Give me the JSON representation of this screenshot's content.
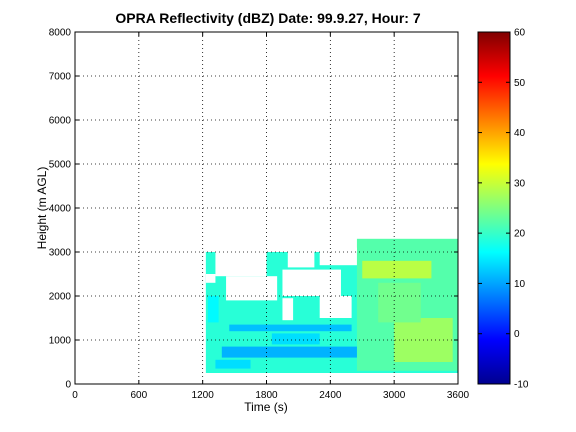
{
  "chart_data": {
    "type": "heatmap",
    "title": "OPRA Reflectivity (dBZ)  Date: 99.9.27, Hour: 7",
    "xlabel": "Time (s)",
    "ylabel": "Height (m AGL)",
    "xlim": [
      0,
      3600
    ],
    "ylim": [
      0,
      8000
    ],
    "x_ticks": [
      "0",
      "600",
      "1200",
      "1800",
      "2400",
      "3000",
      "3600"
    ],
    "y_ticks": [
      "0",
      "1000",
      "2000",
      "3000",
      "4000",
      "5000",
      "6000",
      "7000",
      "8000"
    ],
    "grid": true,
    "colormap": "jet",
    "colorbar": {
      "range": [
        -10,
        60
      ],
      "ticks": [
        "-10",
        "0",
        "10",
        "20",
        "30",
        "40",
        "50",
        "60"
      ]
    },
    "echo_regions": [
      {
        "x": [
          1230,
          3600
        ],
        "y": [
          250,
          3000
        ],
        "dbz": 19
      },
      {
        "x": [
          2650,
          3600
        ],
        "y": [
          300,
          3300
        ],
        "dbz": 22
      },
      {
        "x": [
          2700,
          3350
        ],
        "y": [
          2400,
          2800
        ],
        "dbz": 29
      },
      {
        "x": [
          3000,
          3550
        ],
        "y": [
          500,
          1500
        ],
        "dbz": 27
      },
      {
        "x": [
          2850,
          3250
        ],
        "y": [
          1400,
          2300
        ],
        "dbz": 24
      },
      {
        "x": [
          1380,
          2650
        ],
        "y": [
          600,
          850
        ],
        "dbz": 11
      },
      {
        "x": [
          1450,
          2600
        ],
        "y": [
          1200,
          1350
        ],
        "dbz": 12
      },
      {
        "x": [
          1320,
          1650
        ],
        "y": [
          350,
          550
        ],
        "dbz": 14
      },
      {
        "x": [
          1250,
          1350
        ],
        "y": [
          1400,
          2000
        ],
        "dbz": 16
      },
      {
        "x": [
          1850,
          2300
        ],
        "y": [
          900,
          1150
        ],
        "dbz": 14
      }
    ],
    "gaps": [
      {
        "x": [
          1320,
          1800
        ],
        "y": [
          2450,
          3100
        ]
      },
      {
        "x": [
          1420,
          1900
        ],
        "y": [
          1900,
          2450
        ]
      },
      {
        "x": [
          1950,
          2500
        ],
        "y": [
          2000,
          2600
        ]
      },
      {
        "x": [
          2300,
          2600
        ],
        "y": [
          1500,
          2000
        ]
      },
      {
        "x": [
          1230,
          1320
        ],
        "y": [
          2300,
          2500
        ]
      },
      {
        "x": [
          2000,
          2250
        ],
        "y": [
          2650,
          3100
        ]
      },
      {
        "x": [
          2300,
          2650
        ],
        "y": [
          2700,
          3100
        ]
      },
      {
        "x": [
          1950,
          2050
        ],
        "y": [
          1450,
          1950
        ]
      }
    ]
  }
}
